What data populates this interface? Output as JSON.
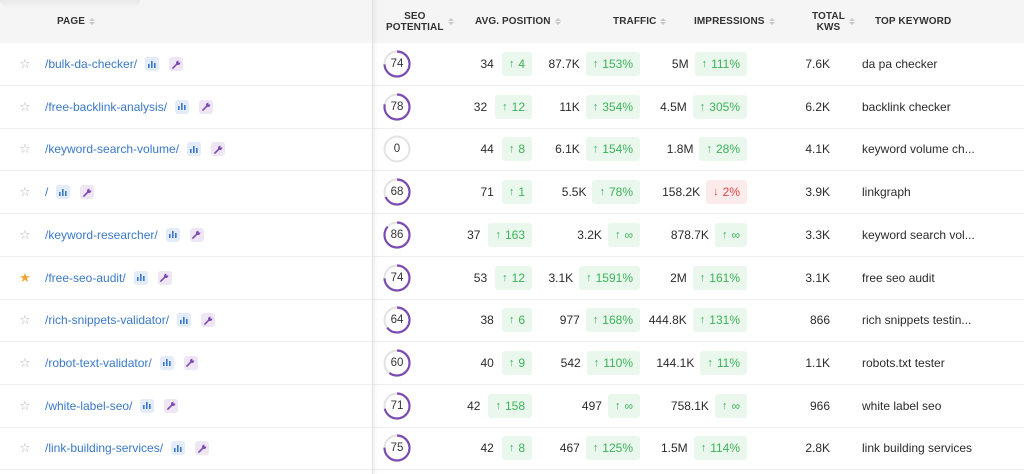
{
  "header": {
    "page": "PAGE",
    "seo_potential_1": "SEO",
    "seo_potential_2": "POTENTIAL",
    "avg_position": "AVG. POSITION",
    "traffic": "TRAFFIC",
    "impressions": "IMPRESSIONS",
    "total_kws_1": "TOTAL",
    "total_kws_2": "KWS",
    "top_keyword": "TOP KEYWORD"
  },
  "colors": {
    "link": "#3a78c9",
    "ring": "#7b4bb2",
    "ring_track": "#e3e3e3",
    "positive": "#3cb35a",
    "positive_bg": "#eaf7ec",
    "negative": "#e24848",
    "negative_bg": "#fdeaea",
    "star_on": "#f0a431"
  },
  "rows": [
    {
      "starred": false,
      "page": "/bulk-da-checker/",
      "seo_potential": "74",
      "seo_pct": 74,
      "avg_position": "34",
      "pos_change": "4",
      "pos_dir": "up",
      "traffic": "87.7K",
      "traffic_change": "153%",
      "traffic_dir": "up",
      "impressions": "5M",
      "imp_change": "111%",
      "imp_dir": "up",
      "total_kws": "7.6K",
      "top_keyword": "da pa checker"
    },
    {
      "starred": false,
      "page": "/free-backlink-analysis/",
      "seo_potential": "78",
      "seo_pct": 78,
      "avg_position": "32",
      "pos_change": "12",
      "pos_dir": "up",
      "traffic": "11K",
      "traffic_change": "354%",
      "traffic_dir": "up",
      "impressions": "4.5M",
      "imp_change": "305%",
      "imp_dir": "up",
      "total_kws": "6.2K",
      "top_keyword": "backlink checker"
    },
    {
      "starred": false,
      "page": "/keyword-search-volume/",
      "seo_potential": "0",
      "seo_pct": 0,
      "avg_position": "44",
      "pos_change": "8",
      "pos_dir": "up",
      "traffic": "6.1K",
      "traffic_change": "154%",
      "traffic_dir": "up",
      "impressions": "1.8M",
      "imp_change": "28%",
      "imp_dir": "up",
      "total_kws": "4.1K",
      "top_keyword": "keyword volume ch..."
    },
    {
      "starred": false,
      "page": "/",
      "seo_potential": "68",
      "seo_pct": 68,
      "avg_position": "71",
      "pos_change": "1",
      "pos_dir": "up",
      "traffic": "5.5K",
      "traffic_change": "78%",
      "traffic_dir": "up",
      "impressions": "158.2K",
      "imp_change": "2%",
      "imp_dir": "down",
      "total_kws": "3.9K",
      "top_keyword": "linkgraph"
    },
    {
      "starred": false,
      "page": "/keyword-researcher/",
      "seo_potential": "86",
      "seo_pct": 86,
      "avg_position": "37",
      "pos_change": "163",
      "pos_dir": "up",
      "traffic": "3.2K",
      "traffic_change": "∞",
      "traffic_dir": "up",
      "impressions": "878.7K",
      "imp_change": "∞",
      "imp_dir": "up",
      "total_kws": "3.3K",
      "top_keyword": "keyword search vol..."
    },
    {
      "starred": true,
      "page": "/free-seo-audit/",
      "seo_potential": "74",
      "seo_pct": 74,
      "avg_position": "53",
      "pos_change": "12",
      "pos_dir": "up",
      "traffic": "3.1K",
      "traffic_change": "1591%",
      "traffic_dir": "up",
      "impressions": "2M",
      "imp_change": "161%",
      "imp_dir": "up",
      "total_kws": "3.1K",
      "top_keyword": "free seo audit"
    },
    {
      "starred": false,
      "page": "/rich-snippets-validator/",
      "seo_potential": "64",
      "seo_pct": 64,
      "avg_position": "38",
      "pos_change": "6",
      "pos_dir": "up",
      "traffic": "977",
      "traffic_change": "168%",
      "traffic_dir": "up",
      "impressions": "444.8K",
      "imp_change": "131%",
      "imp_dir": "up",
      "total_kws": "866",
      "top_keyword": "rich snippets testin..."
    },
    {
      "starred": false,
      "page": "/robot-text-validator/",
      "seo_potential": "60",
      "seo_pct": 60,
      "avg_position": "40",
      "pos_change": "9",
      "pos_dir": "up",
      "traffic": "542",
      "traffic_change": "110%",
      "traffic_dir": "up",
      "impressions": "144.1K",
      "imp_change": "11%",
      "imp_dir": "up",
      "total_kws": "1.1K",
      "top_keyword": "robots.txt tester"
    },
    {
      "starred": false,
      "page": "/white-label-seo/",
      "seo_potential": "71",
      "seo_pct": 71,
      "avg_position": "42",
      "pos_change": "158",
      "pos_dir": "up",
      "traffic": "497",
      "traffic_change": "∞",
      "traffic_dir": "up",
      "impressions": "758.1K",
      "imp_change": "∞",
      "imp_dir": "up",
      "total_kws": "966",
      "top_keyword": "white label seo"
    },
    {
      "starred": false,
      "page": "/link-building-services/",
      "seo_potential": "75",
      "seo_pct": 75,
      "avg_position": "42",
      "pos_change": "8",
      "pos_dir": "up",
      "traffic": "467",
      "traffic_change": "125%",
      "traffic_dir": "up",
      "impressions": "1.5M",
      "imp_change": "114%",
      "imp_dir": "up",
      "total_kws": "2.8K",
      "top_keyword": "link building services"
    }
  ]
}
